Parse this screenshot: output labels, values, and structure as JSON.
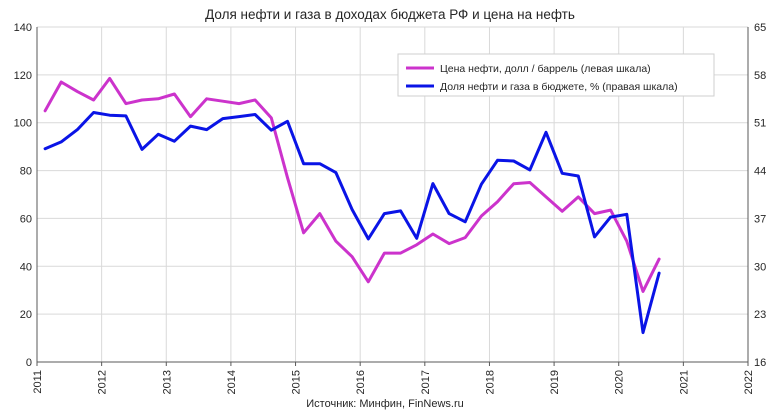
{
  "chart_data": {
    "type": "line",
    "title": "Доля нефти и газа в доходах бюджета РФ и цена на нефть",
    "source": "Источник: Минфин, FinNews.ru",
    "x_ticks": [
      "2011",
      "2012",
      "2013",
      "2014",
      "2015",
      "2016",
      "2017",
      "2018",
      "2019",
      "2020",
      "2021",
      "2022"
    ],
    "xlim": [
      2011,
      2022
    ],
    "ylim_left": [
      0,
      140
    ],
    "yticks_left": [
      "0",
      "20",
      "40",
      "60",
      "80",
      "100",
      "120",
      "140"
    ],
    "ylim_right": [
      16,
      65
    ],
    "yticks_right": [
      "16",
      "23",
      "30",
      "37",
      "44",
      "51",
      "58",
      "65"
    ],
    "grid": true,
    "legend_position": "top-right",
    "colors": {
      "oil": "#cc33cc",
      "share": "#0a14e6",
      "grid": "#d9d9d9",
      "axis": "#595959"
    },
    "series": [
      {
        "name": "Цена нефти, долл / баррель (левая шкала)",
        "axis": "left",
        "points": [
          [
            2011.125,
            105
          ],
          [
            2011.375,
            117
          ],
          [
            2011.625,
            113
          ],
          [
            2011.875,
            109.5
          ],
          [
            2012.125,
            118.5
          ],
          [
            2012.375,
            108
          ],
          [
            2012.625,
            109.5
          ],
          [
            2012.875,
            110
          ],
          [
            2013.125,
            112
          ],
          [
            2013.375,
            102.5
          ],
          [
            2013.625,
            110
          ],
          [
            2013.875,
            109
          ],
          [
            2014.125,
            108
          ],
          [
            2014.375,
            109.5
          ],
          [
            2014.625,
            102
          ],
          [
            2014.875,
            77
          ],
          [
            2015.125,
            54
          ],
          [
            2015.375,
            62
          ],
          [
            2015.625,
            50.5
          ],
          [
            2015.875,
            44
          ],
          [
            2016.125,
            33.5
          ],
          [
            2016.375,
            45.5
          ],
          [
            2016.625,
            45.5
          ],
          [
            2016.875,
            49
          ],
          [
            2017.125,
            53.5
          ],
          [
            2017.375,
            49.5
          ],
          [
            2017.625,
            52
          ],
          [
            2017.875,
            61
          ],
          [
            2018.125,
            67
          ],
          [
            2018.375,
            74.5
          ],
          [
            2018.625,
            75
          ],
          [
            2018.875,
            69
          ],
          [
            2019.125,
            63
          ],
          [
            2019.375,
            69
          ],
          [
            2019.625,
            62
          ],
          [
            2019.875,
            63.5
          ],
          [
            2020.125,
            50.5
          ],
          [
            2020.375,
            29.5
          ],
          [
            2020.625,
            43
          ]
        ]
      },
      {
        "name": "Доля нефти и газа в бюджете, % (правая шкала)",
        "axis": "right",
        "points": [
          [
            2011.125,
            47.2
          ],
          [
            2011.375,
            48.2
          ],
          [
            2011.625,
            50
          ],
          [
            2011.875,
            52.5
          ],
          [
            2012.125,
            52.1
          ],
          [
            2012.375,
            52
          ],
          [
            2012.625,
            47.1
          ],
          [
            2012.875,
            49.3
          ],
          [
            2013.125,
            48.3
          ],
          [
            2013.375,
            50.5
          ],
          [
            2013.625,
            50
          ],
          [
            2013.875,
            51.6
          ],
          [
            2014.125,
            51.9
          ],
          [
            2014.375,
            52.2
          ],
          [
            2014.625,
            49.9
          ],
          [
            2014.875,
            51.2
          ],
          [
            2015.125,
            45
          ],
          [
            2015.375,
            45
          ],
          [
            2015.625,
            43.7
          ],
          [
            2015.875,
            38.3
          ],
          [
            2016.125,
            34
          ],
          [
            2016.375,
            37.7
          ],
          [
            2016.625,
            38.1
          ],
          [
            2016.875,
            34.1
          ],
          [
            2017.125,
            42.1
          ],
          [
            2017.375,
            37.7
          ],
          [
            2017.625,
            36.5
          ],
          [
            2017.875,
            42
          ],
          [
            2018.125,
            45.5
          ],
          [
            2018.375,
            45.4
          ],
          [
            2018.625,
            44.1
          ],
          [
            2018.875,
            49.6
          ],
          [
            2019.125,
            43.6
          ],
          [
            2019.375,
            43.2
          ],
          [
            2019.625,
            34.3
          ],
          [
            2019.875,
            37.2
          ],
          [
            2020.125,
            37.6
          ],
          [
            2020.375,
            20.3
          ],
          [
            2020.625,
            29
          ]
        ]
      }
    ]
  }
}
